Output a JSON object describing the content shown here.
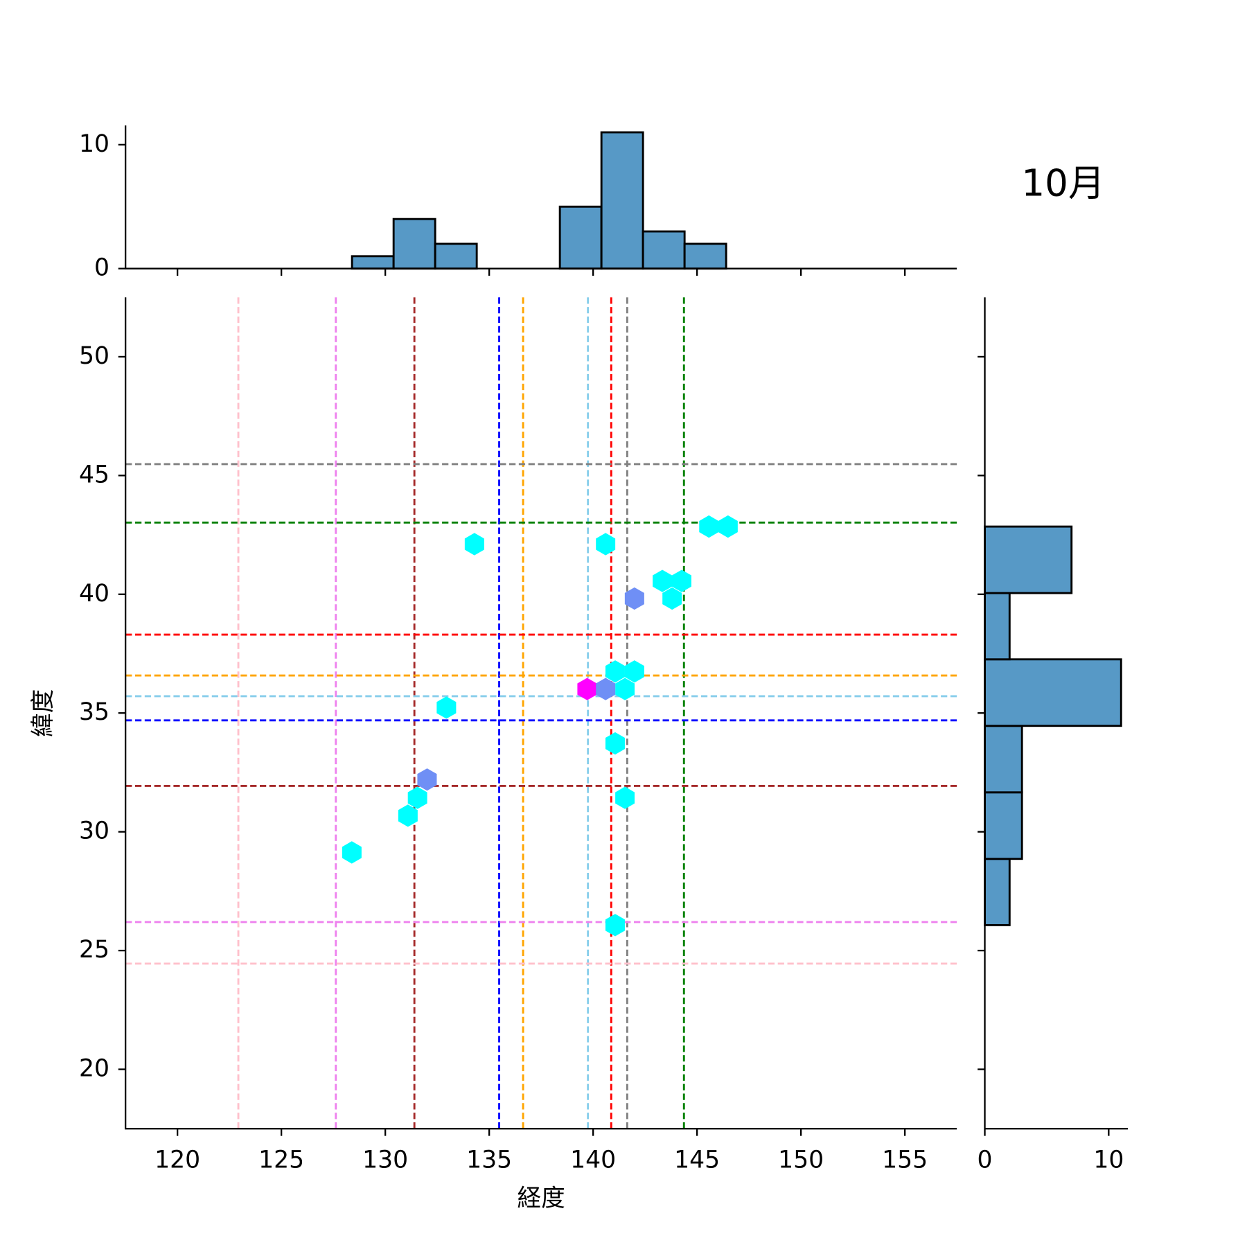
{
  "chart_data": {
    "type": "hexbin",
    "title": "10月",
    "xlabel": "経度",
    "ylabel": "緯度",
    "xlim": [
      117.5,
      157.5
    ],
    "ylim": [
      17.5,
      52.5
    ],
    "xticks": [
      120,
      125,
      130,
      135,
      140,
      145,
      150,
      155
    ],
    "yticks": [
      20,
      25,
      30,
      35,
      40,
      45,
      50
    ],
    "points": {
      "x": [
        134.29,
        140.6,
        145.57,
        146.49,
        143.33,
        144.26,
        143.8,
        141.99,
        141.06,
        141.99,
        141.53,
        139.71,
        140.6,
        132.94,
        141.06,
        132.01,
        131.55,
        141.53,
        131.09,
        128.39,
        141.06
      ],
      "y": [
        42.11,
        42.11,
        42.85,
        42.85,
        40.56,
        40.56,
        39.82,
        39.82,
        36.75,
        36.75,
        36.01,
        36.01,
        36.01,
        35.23,
        33.72,
        32.2,
        31.43,
        31.43,
        30.68,
        29.13,
        26.07
      ],
      "colors": [
        "#00ffff",
        "#00ffff",
        "#00ffff",
        "#00ffff",
        "#00ffff",
        "#00ffff",
        "#00ffff",
        "#6f8ff5",
        "#00ffff",
        "#00ffff",
        "#00ffff",
        "#ff00ff",
        "#6f8ff5",
        "#00ffff",
        "#00ffff",
        "#6f8ff5",
        "#00ffff",
        "#00ffff",
        "#00ffff",
        "#00ffff",
        "#00ffff"
      ]
    },
    "vlines": [
      {
        "color": "pink",
        "x": 122.93
      },
      {
        "color": "violet",
        "x": 127.62
      },
      {
        "color": "brown",
        "x": 131.4
      },
      {
        "color": "blue",
        "x": 135.48
      },
      {
        "color": "orange",
        "x": 136.63
      },
      {
        "color": "skyblue",
        "x": 139.75
      },
      {
        "color": "red",
        "x": 140.87
      },
      {
        "color": "gray",
        "x": 141.64
      },
      {
        "color": "green",
        "x": 144.37
      }
    ],
    "hlines": [
      {
        "color": "gray",
        "y": 45.48
      },
      {
        "color": "green",
        "y": 43.02
      },
      {
        "color": "red",
        "y": 38.3
      },
      {
        "color": "orange",
        "y": 36.58
      },
      {
        "color": "skyblue",
        "y": 35.71
      },
      {
        "color": "blue",
        "y": 34.69
      },
      {
        "color": "brown",
        "y": 31.93
      },
      {
        "color": "violet",
        "y": 26.2
      },
      {
        "color": "pink",
        "y": 24.45
      }
    ],
    "hist_color": "#5799c6",
    "x_hist": {
      "bins": [
        128.4,
        130.4,
        132.4,
        134.4,
        136.4,
        138.4,
        140.4,
        142.4,
        144.4,
        146.4
      ],
      "counts": [
        1,
        4,
        2,
        0,
        0,
        5,
        11,
        3,
        2
      ],
      "ylim": [
        0,
        11.55
      ],
      "yticks": [
        0,
        10
      ]
    },
    "y_hist": {
      "bins": [
        26.07,
        28.86,
        31.66,
        34.46,
        37.26,
        40.05,
        42.85
      ],
      "counts": [
        2,
        3,
        3,
        11,
        2,
        7
      ],
      "xlim": [
        0,
        11.55
      ],
      "xticks": [
        0,
        10
      ]
    }
  }
}
